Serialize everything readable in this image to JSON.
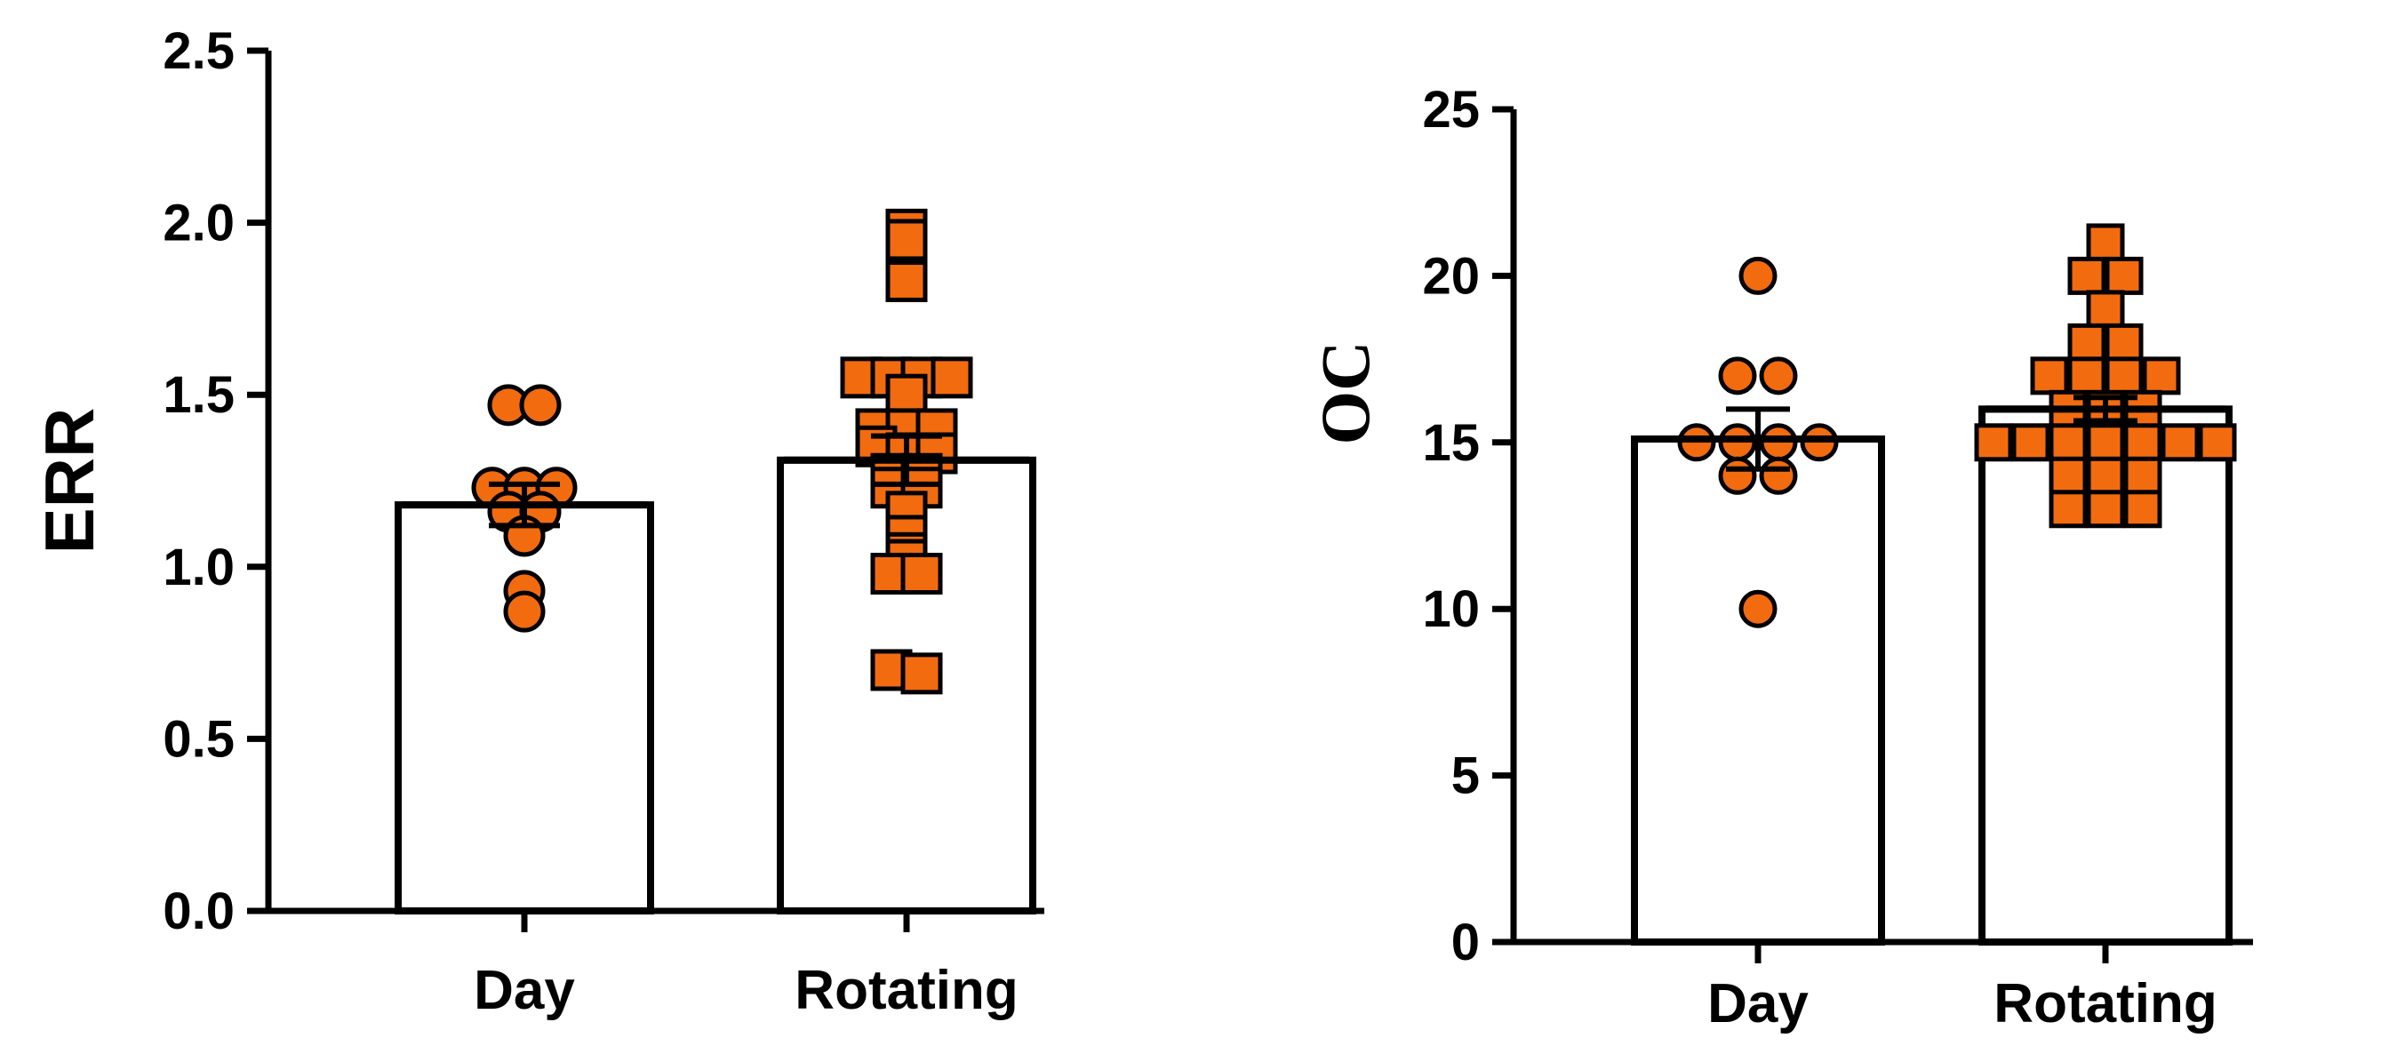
{
  "colors": {
    "marker_fill": "#f26b0f",
    "stroke": "#000000",
    "bar_fill": "#ffffff"
  },
  "chart_data": [
    {
      "type": "bar",
      "ylabel": "ERR",
      "ylim": [
        0,
        2.5
      ],
      "yticks": [
        0.0,
        0.5,
        1.0,
        1.5,
        2.0,
        2.5
      ],
      "ytick_labels": [
        "0.0",
        "0.5",
        "1.0",
        "1.5",
        "2.0",
        "2.5"
      ],
      "categories": [
        "Day",
        "Rotating"
      ],
      "values": [
        1.18,
        1.31
      ],
      "error": [
        0.06,
        0.07
      ],
      "marker_shapes": [
        "circle",
        "square"
      ],
      "points": [
        {
          "category": "Day",
          "values": [
            1.47,
            1.47,
            1.23,
            1.23,
            1.23,
            1.16,
            1.16,
            1.09,
            0.93,
            0.87
          ]
        },
        {
          "category": "Rotating",
          "values": [
            1.98,
            1.95,
            1.83,
            1.55,
            1.55,
            1.55,
            1.55,
            1.5,
            1.4,
            1.4,
            1.4,
            1.35,
            1.33,
            1.33,
            1.27,
            1.27,
            1.23,
            1.23,
            1.16,
            1.09,
            1.04,
            1.02,
            0.98,
            0.98,
            0.7,
            0.69
          ]
        }
      ]
    },
    {
      "type": "bar",
      "ylabel": "OC",
      "ylim": [
        0,
        25
      ],
      "yticks": [
        0,
        5,
        10,
        15,
        20,
        25
      ],
      "ytick_labels": [
        "0",
        "5",
        "10",
        "15",
        "20",
        "25"
      ],
      "categories": [
        "Day",
        "Rotating"
      ],
      "values": [
        15.1,
        16.0
      ],
      "error": [
        0.9,
        0.35
      ],
      "marker_shapes": [
        "circle",
        "square"
      ],
      "points": [
        {
          "category": "Day",
          "values": [
            20,
            17,
            17,
            15,
            15,
            15,
            15,
            14,
            14,
            10
          ]
        },
        {
          "category": "Rotating",
          "values": [
            21,
            20,
            20,
            19,
            18,
            18,
            17,
            17,
            17,
            17,
            16,
            16,
            16,
            15,
            15,
            15,
            15,
            15,
            15,
            15,
            14,
            14,
            14,
            13,
            13,
            13
          ]
        }
      ]
    }
  ]
}
